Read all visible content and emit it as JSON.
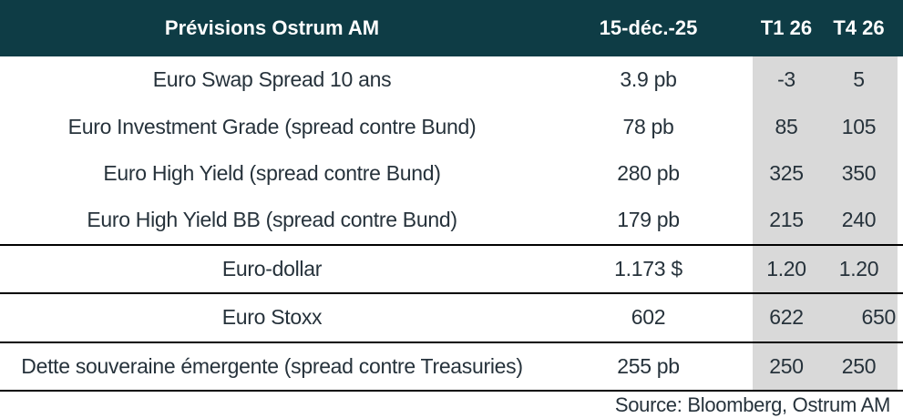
{
  "colors": {
    "header_bg": "#0E3C45",
    "header_text": "#FFFFFF",
    "highlight_bg": "#D9D9D9",
    "body_text": "#26323B",
    "border": "#000000"
  },
  "table": {
    "headers": {
      "title": "Prévisions Ostrum AM",
      "current_date": "15-déc.-25",
      "t1_26": "T1 26",
      "t4_26": "T4 26"
    },
    "rows": [
      {
        "label": "Euro Swap Spread 10 ans",
        "current": "3.9 pb",
        "t1_26": "-3",
        "t4_26": "5"
      },
      {
        "label": "Euro Investment Grade (spread contre Bund)",
        "current": "78 pb",
        "t1_26": "85",
        "t4_26": "105"
      },
      {
        "label": "Euro High Yield (spread contre Bund)",
        "current": "280 pb",
        "t1_26": "325",
        "t4_26": "350"
      },
      {
        "label": "Euro High Yield BB (spread contre Bund)",
        "current": "179 pb",
        "t1_26": "215",
        "t4_26": "240"
      },
      {
        "label": "Euro-dollar",
        "current": "1.173 $",
        "t1_26": "1.20",
        "t4_26": "1.20"
      },
      {
        "label": "Euro Stoxx",
        "current": "602",
        "t1_26": "622",
        "t4_26": "650"
      },
      {
        "label": "Dette souveraine émergente (spread contre Treasuries)",
        "current": "255 pb",
        "t1_26": "250",
        "t4_26": "250"
      }
    ]
  },
  "source": "Source: Bloomberg, Ostrum AM",
  "chart_data": {
    "type": "table",
    "title": "Prévisions Ostrum AM",
    "columns": [
      "Prévisions Ostrum AM",
      "15-déc.-25",
      "T1 26",
      "T4 26"
    ],
    "rows": [
      [
        "Euro Swap Spread 10 ans",
        "3.9 pb",
        -3,
        5
      ],
      [
        "Euro Investment Grade (spread contre Bund)",
        "78 pb",
        85,
        105
      ],
      [
        "Euro High Yield (spread contre Bund)",
        "280 pb",
        325,
        350
      ],
      [
        "Euro High Yield BB (spread contre Bund)",
        "179 pb",
        215,
        240
      ],
      [
        "Euro-dollar",
        "1.173 $",
        1.2,
        1.2
      ],
      [
        "Euro Stoxx",
        602,
        622,
        650
      ],
      [
        "Dette souveraine émergente (spread contre Treasuries)",
        "255 pb",
        250,
        250
      ]
    ],
    "highlighted_columns": [
      "T1 26",
      "T4 26"
    ],
    "source": "Source: Bloomberg, Ostrum AM"
  }
}
